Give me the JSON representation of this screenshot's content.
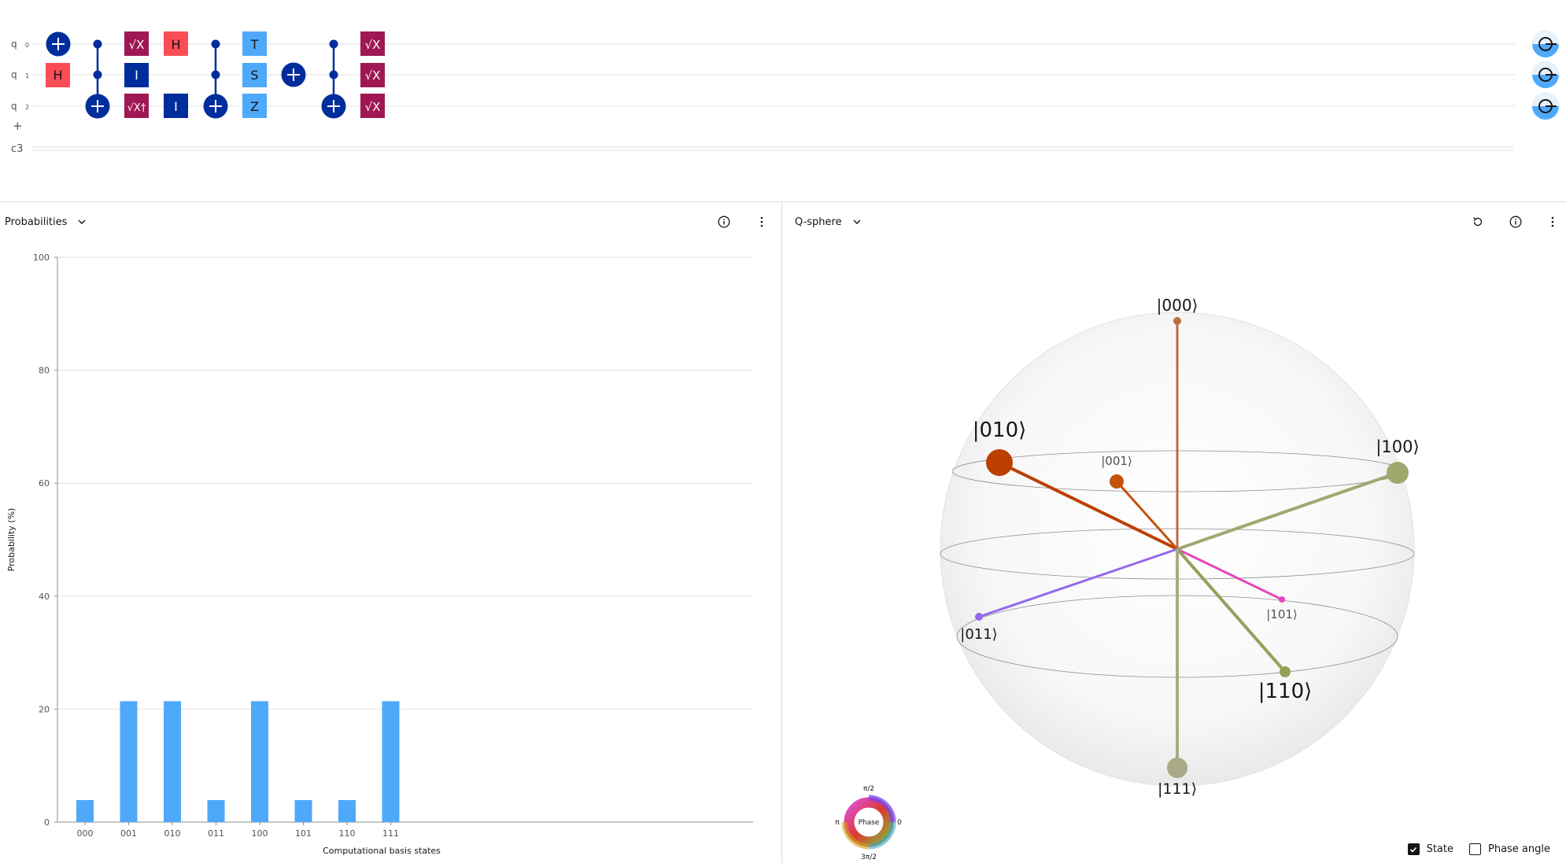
{
  "circuit": {
    "qubit_labels": [
      {
        "name": "q",
        "index": "0"
      },
      {
        "name": "q",
        "index": "1"
      },
      {
        "name": "q",
        "index": "2"
      }
    ],
    "add_register": "+",
    "classical_label": "c3",
    "gates": {
      "h": "H",
      "i": "I",
      "t": "T",
      "s": "S",
      "z": "Z",
      "sx": "√X",
      "sxdg": "√X†"
    }
  },
  "probabilities": {
    "title": "Probabilities",
    "chart_data": {
      "type": "bar",
      "categories": [
        "000",
        "001",
        "010",
        "011",
        "100",
        "101",
        "110",
        "111"
      ],
      "values": [
        3.9,
        21.4,
        21.4,
        3.9,
        21.4,
        3.9,
        3.9,
        21.4
      ],
      "xlabel": "Computational basis states",
      "ylabel": "Probability (%)",
      "ylim": [
        0,
        100
      ],
      "yticks": [
        0,
        20,
        40,
        60,
        80,
        100
      ],
      "bar_color": "#4fa9fb",
      "grid": true
    }
  },
  "qsphere": {
    "title": "Q-sphere",
    "states": [
      {
        "label": "|000⟩",
        "color": "#c06a45"
      },
      {
        "label": "|010⟩",
        "color": "#bb4000"
      },
      {
        "label": "|001⟩",
        "color": "#c4520c"
      },
      {
        "label": "|100⟩",
        "color": "#a0a86e"
      },
      {
        "label": "|011⟩",
        "color": "#9567ec"
      },
      {
        "label": "|101⟩",
        "color": "#e447b8"
      },
      {
        "label": "|110⟩",
        "color": "#95a05a"
      },
      {
        "label": "|111⟩",
        "color": "#a8ab86"
      }
    ],
    "phase_wheel": {
      "center": "Phase",
      "top": "π/2",
      "left": "π",
      "right": "0",
      "bottom": "3π/2"
    },
    "legend": {
      "state_label": "State",
      "state_checked": true,
      "phase_label": "Phase angle",
      "phase_checked": false
    }
  }
}
